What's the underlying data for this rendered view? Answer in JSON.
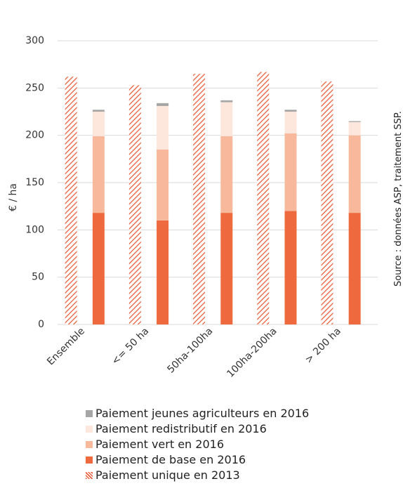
{
  "chart_data": {
    "type": "bar",
    "title": "",
    "ylabel": "€ / ha",
    "ylim": [
      0,
      300
    ],
    "yticks": [
      0,
      50,
      100,
      150,
      200,
      250,
      300
    ],
    "grid": true,
    "categories": [
      "Ensemble",
      "<= 50 ha",
      "50ha-100ha",
      "100ha-200ha",
      "> 200 ha"
    ],
    "series": [
      {
        "name": "Paiement unique en 2013",
        "stack": "2013",
        "color": "#e8603c",
        "pattern": "hatched",
        "values": [
          262,
          253,
          265,
          267,
          257
        ]
      },
      {
        "name": "Paiement de base en 2016",
        "stack": "2016",
        "color": "#ee6a3e",
        "values": [
          118,
          110,
          118,
          120,
          118
        ]
      },
      {
        "name": "Paiement vert en 2016",
        "stack": "2016",
        "color": "#f7b89c",
        "values": [
          81,
          75,
          81,
          82,
          82
        ]
      },
      {
        "name": "Paiement redistributif en 2016",
        "stack": "2016",
        "color": "#fde6dc",
        "values": [
          26,
          46,
          36,
          23,
          14
        ]
      },
      {
        "name": "Paiement jeunes agriculteurs en 2016",
        "stack": "2016",
        "color": "#a6a6a6",
        "values": [
          2,
          3,
          2,
          2,
          1
        ]
      }
    ],
    "legend_order": [
      "Paiement jeunes agriculteurs en 2016",
      "Paiement redistributif en 2016",
      "Paiement vert en 2016",
      "Paiement de base en 2016",
      "Paiement unique en 2013"
    ],
    "legend_position": "bottom"
  },
  "source_note": "Source : données ASP, traitement SSP."
}
